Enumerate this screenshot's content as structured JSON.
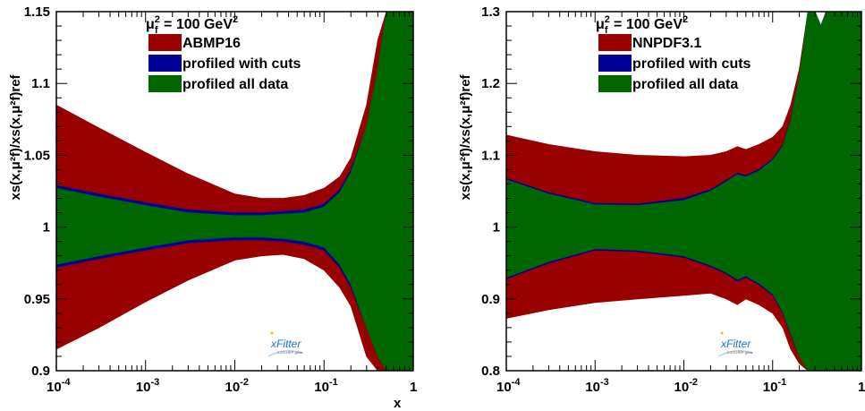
{
  "figure": {
    "xaxis_title": "x",
    "logo_text": "xFitter",
    "logo_subtext": "2.0.0-HEP-grids"
  },
  "colors": {
    "reference": "#990000",
    "profiled_cuts": "#000099",
    "profiled_all": "#006600"
  },
  "chart_data": [
    {
      "type": "area",
      "scale_label_base": "μ",
      "scale_label_sub": "f",
      "scale_label_sup": "2",
      "scale_label_rest": " = 100 GeV",
      "scale_label_rest_sup": "2",
      "ylabel": "xs(x,μ²f)/xs(x,μ²f)ref",
      "xscale": "log",
      "xlim": [
        0.0001,
        1
      ],
      "ylim": [
        0.9,
        1.15
      ],
      "xticks": [
        {
          "v": 0.0001,
          "base": "10",
          "exp": "-4"
        },
        {
          "v": 0.001,
          "base": "10",
          "exp": "-3"
        },
        {
          "v": 0.01,
          "base": "10",
          "exp": "-2"
        },
        {
          "v": 0.1,
          "base": "10",
          "exp": "-1"
        },
        {
          "v": 1,
          "base": "1",
          "exp": ""
        }
      ],
      "yticks": [
        {
          "v": 0.9,
          "label": "0.9"
        },
        {
          "v": 0.95,
          "label": "0.95"
        },
        {
          "v": 1.0,
          "label": "1"
        },
        {
          "v": 1.05,
          "label": "1.05"
        },
        {
          "v": 1.1,
          "label": "1.1"
        },
        {
          "v": 1.15,
          "label": "1.15"
        }
      ],
      "legend": [
        "ABMP16",
        "profiled with cuts",
        "profiled all data"
      ],
      "x": [
        0.0001,
        0.0003,
        0.001,
        0.003,
        0.01,
        0.02,
        0.035,
        0.06,
        0.1,
        0.15,
        0.2,
        0.3,
        0.4,
        0.5,
        0.6,
        0.8,
        1.0
      ],
      "series": [
        {
          "name": "ABMP16",
          "upper": [
            1.085,
            1.069,
            1.052,
            1.037,
            1.023,
            1.02,
            1.02,
            1.022,
            1.027,
            1.035,
            1.048,
            1.085,
            1.13,
            1.15,
            1.15,
            1.15,
            1.15
          ],
          "lower": [
            0.915,
            0.93,
            0.948,
            0.963,
            0.977,
            0.98,
            0.981,
            0.978,
            0.97,
            0.958,
            0.945,
            0.91,
            0.9,
            0.9,
            0.9,
            0.9,
            0.9
          ]
        },
        {
          "name": "profiled with cuts",
          "upper": [
            1.029,
            1.023,
            1.017,
            1.012,
            1.01,
            1.01,
            1.011,
            1.012,
            1.016,
            1.026,
            1.04,
            1.07,
            1.11,
            1.15,
            1.15,
            1.15,
            1.15
          ],
          "lower": [
            0.972,
            0.978,
            0.984,
            0.989,
            0.991,
            0.991,
            0.99,
            0.988,
            0.984,
            0.972,
            0.958,
            0.93,
            0.91,
            0.9,
            0.9,
            0.9,
            0.9
          ]
        },
        {
          "name": "profiled all data",
          "upper": [
            1.027,
            1.021,
            1.015,
            1.01,
            1.008,
            1.008,
            1.009,
            1.01,
            1.014,
            1.024,
            1.038,
            1.07,
            1.11,
            1.15,
            1.15,
            1.15,
            1.15
          ],
          "lower": [
            0.974,
            0.98,
            0.986,
            0.991,
            0.993,
            0.993,
            0.992,
            0.99,
            0.986,
            0.974,
            0.96,
            0.93,
            0.91,
            0.9,
            0.9,
            0.9,
            0.9
          ]
        }
      ]
    },
    {
      "type": "area",
      "scale_label_base": "μ",
      "scale_label_sub": "f",
      "scale_label_sup": "2",
      "scale_label_rest": " = 100 GeV",
      "scale_label_rest_sup": "2",
      "ylabel": "xs(x,μ²f)/xs(x,μ²f)ref",
      "xscale": "log",
      "xlim": [
        0.0001,
        1
      ],
      "ylim": [
        0.8,
        1.3
      ],
      "xticks": [
        {
          "v": 0.0001,
          "base": "10",
          "exp": "-4"
        },
        {
          "v": 0.001,
          "base": "10",
          "exp": "-3"
        },
        {
          "v": 0.01,
          "base": "10",
          "exp": "-2"
        },
        {
          "v": 0.1,
          "base": "10",
          "exp": "-1"
        },
        {
          "v": 1,
          "base": "1",
          "exp": ""
        }
      ],
      "yticks": [
        {
          "v": 0.8,
          "label": "0.8"
        },
        {
          "v": 0.9,
          "label": "0.9"
        },
        {
          "v": 1.0,
          "label": "1"
        },
        {
          "v": 1.1,
          "label": "1.1"
        },
        {
          "v": 1.2,
          "label": "1.2"
        },
        {
          "v": 1.3,
          "label": "1.3"
        }
      ],
      "legend": [
        "NNPDF3.1",
        "profiled with cuts",
        "profiled all data"
      ],
      "x": [
        0.0001,
        0.0003,
        0.001,
        0.003,
        0.01,
        0.02,
        0.03,
        0.04,
        0.05,
        0.07,
        0.1,
        0.13,
        0.16,
        0.2,
        0.25,
        0.3,
        0.35,
        0.4,
        0.6,
        1.0
      ],
      "series": [
        {
          "name": "NNPDF3.1",
          "upper": [
            1.128,
            1.115,
            1.105,
            1.1,
            1.098,
            1.1,
            1.105,
            1.112,
            1.108,
            1.115,
            1.125,
            1.14,
            1.17,
            1.22,
            1.3,
            1.3,
            1.28,
            1.3,
            1.3,
            1.3
          ],
          "lower": [
            0.873,
            0.885,
            0.895,
            0.9,
            0.905,
            0.908,
            0.9,
            0.892,
            0.9,
            0.892,
            0.88,
            0.86,
            0.83,
            0.81,
            0.8,
            0.8,
            0.8,
            0.8,
            0.8,
            0.8
          ]
        },
        {
          "name": "profiled with cuts",
          "upper": [
            1.068,
            1.048,
            1.033,
            1.032,
            1.04,
            1.052,
            1.065,
            1.075,
            1.072,
            1.08,
            1.095,
            1.115,
            1.15,
            1.21,
            1.3,
            1.3,
            1.28,
            1.3,
            1.3,
            1.3
          ],
          "lower": [
            0.928,
            0.95,
            0.968,
            0.966,
            0.958,
            0.945,
            0.935,
            0.925,
            0.93,
            0.92,
            0.905,
            0.88,
            0.85,
            0.82,
            0.8,
            0.8,
            0.8,
            0.8,
            0.8,
            0.8
          ]
        },
        {
          "name": "profiled all data",
          "upper": [
            1.066,
            1.046,
            1.031,
            1.03,
            1.037,
            1.05,
            1.063,
            1.073,
            1.07,
            1.078,
            1.093,
            1.113,
            1.148,
            1.21,
            1.3,
            1.3,
            1.28,
            1.3,
            1.3,
            1.3
          ],
          "lower": [
            0.93,
            0.952,
            0.97,
            0.968,
            0.96,
            0.947,
            0.937,
            0.927,
            0.932,
            0.922,
            0.907,
            0.882,
            0.852,
            0.82,
            0.8,
            0.8,
            0.8,
            0.8,
            0.8,
            0.8
          ]
        }
      ]
    }
  ]
}
